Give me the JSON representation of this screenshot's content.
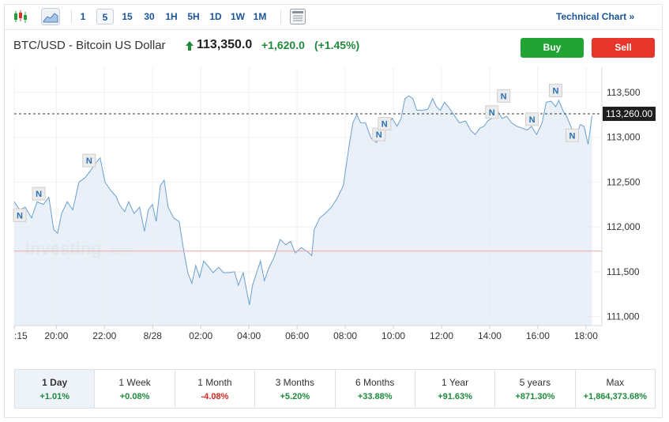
{
  "toolbar": {
    "intervals": [
      "1",
      "5",
      "15",
      "30",
      "1H",
      "5H",
      "1D",
      "1W",
      "1M"
    ],
    "active": 1,
    "link": "Technical Chart »"
  },
  "header": {
    "title": "BTC/USD - Bitcoin US Dollar",
    "price": "113,350.0",
    "change": "+1,620.0",
    "change_pct": "(+1.45%)",
    "buy": "Buy",
    "sell": "Sell"
  },
  "chart_data": {
    "type": "line",
    "watermark": {
      "brand": "Investing",
      "suffix": ".com"
    },
    "x": [
      18.25,
      18.48,
      18.71,
      18.97,
      19.2,
      19.46,
      19.69,
      19.89,
      20.05,
      20.22,
      20.45,
      20.68,
      20.94,
      21.2,
      21.43,
      21.66,
      21.82,
      22.02,
      22.25,
      22.48,
      22.64,
      22.84,
      23.0,
      23.23,
      23.46,
      23.66,
      23.82,
      23.99,
      24.15,
      24.32,
      24.48,
      24.64,
      24.87,
      25.1,
      25.3,
      25.46,
      25.63,
      25.79,
      25.95,
      26.12,
      26.28,
      26.51,
      26.74,
      26.94,
      27.17,
      27.4,
      27.56,
      27.76,
      27.92,
      28.02,
      28.15,
      28.32,
      28.48,
      28.64,
      28.81,
      29.04,
      29.3,
      29.53,
      29.73,
      29.92,
      30.18,
      30.45,
      30.61,
      30.71,
      30.94,
      31.17,
      31.43,
      31.69,
      31.92,
      32.09,
      32.18,
      32.32,
      32.48,
      32.64,
      32.84,
      33.07,
      33.3,
      33.5,
      33.73,
      33.95,
      34.15,
      34.32,
      34.48,
      34.64,
      34.81,
      34.97,
      35.2,
      35.43,
      35.63,
      35.79,
      35.95,
      36.12,
      36.28,
      36.51,
      36.74,
      37.0,
      37.2,
      37.4,
      37.59,
      37.76,
      37.92,
      38.09,
      38.32,
      38.51,
      38.71,
      38.91,
      39.14,
      39.36,
      39.56,
      39.73,
      39.95,
      40.18,
      40.35,
      40.55,
      40.74,
      40.87,
      41.04,
      41.2,
      41.4,
      41.59,
      41.76,
      41.92,
      42.09,
      42.25
    ],
    "series": [
      {
        "name": "BTC/USD",
        "color": "#6a9fd0",
        "fill": "#e3ecf5",
        "values": [
          112280,
          112190,
          112220,
          112100,
          112280,
          112250,
          112330,
          111970,
          111930,
          112150,
          112280,
          112190,
          112500,
          112550,
          112630,
          112720,
          112770,
          112500,
          112410,
          112340,
          112240,
          112170,
          112280,
          112150,
          112220,
          111950,
          112190,
          112250,
          112060,
          112460,
          112520,
          112220,
          112100,
          112060,
          111720,
          111490,
          111370,
          111570,
          111440,
          111620,
          111570,
          111490,
          111550,
          111490,
          111490,
          111500,
          111350,
          111490,
          111270,
          111130,
          111350,
          111490,
          111620,
          111400,
          111530,
          111660,
          111860,
          111800,
          111840,
          111710,
          111770,
          111720,
          111680,
          111970,
          112100,
          112150,
          112220,
          112330,
          112460,
          112770,
          112940,
          113160,
          113250,
          113160,
          113160,
          112990,
          112940,
          113050,
          113120,
          113210,
          113120,
          113210,
          113430,
          113460,
          113430,
          113300,
          113300,
          113310,
          113430,
          113340,
          113300,
          113390,
          113340,
          113250,
          113160,
          113180,
          113080,
          113030,
          113100,
          113120,
          113180,
          113210,
          113300,
          113210,
          113230,
          113160,
          113120,
          113100,
          113080,
          113120,
          113030,
          113160,
          113390,
          113400,
          113340,
          113410,
          113300,
          113230,
          113100,
          113010,
          113140,
          113120,
          112920,
          113240
        ]
      }
    ],
    "xlim": [
      18.25,
      42.66
    ],
    "xticks": [
      {
        "value": 18.25,
        "label": ":15"
      },
      {
        "value": 20,
        "label": "20:00"
      },
      {
        "value": 22,
        "label": "22:00"
      },
      {
        "value": 24,
        "label": "8/28"
      },
      {
        "value": 26,
        "label": "02:00"
      },
      {
        "value": 28,
        "label": "04:00"
      },
      {
        "value": 30,
        "label": "06:00"
      },
      {
        "value": 32,
        "label": "08:00"
      },
      {
        "value": 34,
        "label": "10:00"
      },
      {
        "value": 36,
        "label": "12:00"
      },
      {
        "value": 38,
        "label": "14:00"
      },
      {
        "value": 40,
        "label": "16:00"
      },
      {
        "value": 42,
        "label": "18:00"
      }
    ],
    "ylim": [
      110900,
      113780
    ],
    "yticks": [
      {
        "value": 111000,
        "label": "111,000"
      },
      {
        "value": 111500,
        "label": "111,500"
      },
      {
        "value": 112000,
        "label": "112,000"
      },
      {
        "value": 112500,
        "label": "112,500"
      },
      {
        "value": 113000,
        "label": "113,000"
      },
      {
        "value": 113500,
        "label": "113,500"
      }
    ],
    "grid": true,
    "last_price": {
      "value": 113260,
      "label": "113,260.00"
    },
    "baseline": 111730,
    "news": [
      {
        "x": 18.48,
        "y": 112130,
        "label": "N"
      },
      {
        "x": 19.27,
        "y": 112370,
        "label": "N"
      },
      {
        "x": 21.36,
        "y": 112740,
        "label": "N"
      },
      {
        "x": 33.4,
        "y": 113030,
        "label": "N"
      },
      {
        "x": 33.63,
        "y": 113150,
        "label": "N"
      },
      {
        "x": 38.09,
        "y": 113280,
        "label": "N"
      },
      {
        "x": 38.58,
        "y": 113460,
        "label": "N"
      },
      {
        "x": 39.76,
        "y": 113200,
        "label": "N"
      },
      {
        "x": 40.74,
        "y": 113520,
        "label": "N"
      },
      {
        "x": 41.43,
        "y": 113020,
        "label": "N"
      }
    ]
  },
  "periods": {
    "active": 0,
    "items": [
      {
        "name": "1 Day",
        "change": "+1.01%"
      },
      {
        "name": "1 Week",
        "change": "+0.08%"
      },
      {
        "name": "1 Month",
        "change": "-4.08%"
      },
      {
        "name": "3 Months",
        "change": "+5.20%"
      },
      {
        "name": "6 Months",
        "change": "+33.88%"
      },
      {
        "name": "1 Year",
        "change": "+91.63%"
      },
      {
        "name": "5 years",
        "change": "+871.30%"
      },
      {
        "name": "Max",
        "change": "+1,864,373.68%"
      }
    ]
  }
}
